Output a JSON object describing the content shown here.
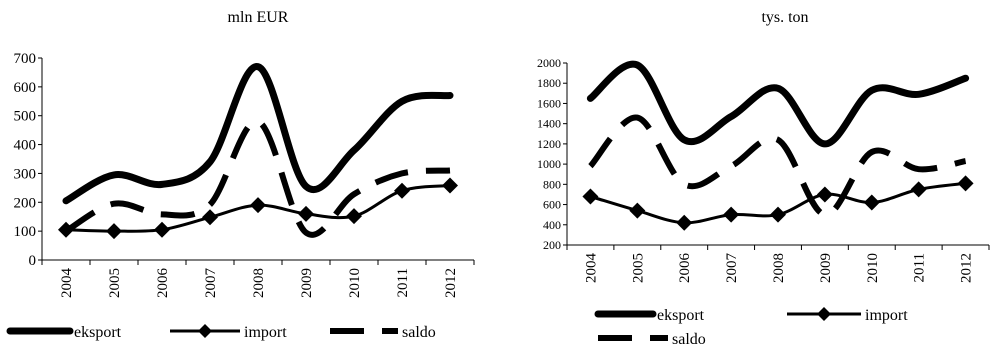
{
  "chart_data": [
    {
      "type": "line",
      "title": "mln EUR",
      "categories": [
        "2004",
        "2005",
        "2006",
        "2007",
        "2008",
        "2009",
        "2010",
        "2011",
        "2012"
      ],
      "ylim": [
        0,
        700
      ],
      "yticks": [
        0,
        100,
        200,
        300,
        400,
        500,
        600,
        700
      ],
      "series": [
        {
          "name": "eksport",
          "values": [
            205,
            295,
            262,
            340,
            670,
            255,
            380,
            550,
            570
          ],
          "style": "thick-solid"
        },
        {
          "name": "import",
          "values": [
            105,
            100,
            105,
            148,
            190,
            160,
            152,
            240,
            258
          ],
          "style": "solid-diamond"
        },
        {
          "name": "saldo",
          "values": [
            100,
            195,
            158,
            192,
            480,
            95,
            228,
            300,
            310
          ],
          "style": "dashed"
        }
      ],
      "legend_position": "bottom"
    },
    {
      "type": "line",
      "title": "tys. ton",
      "categories": [
        "2004",
        "2005",
        "2006",
        "2007",
        "2008",
        "2009",
        "2010",
        "2011",
        "2012"
      ],
      "ylim": [
        200,
        2000
      ],
      "yticks": [
        200,
        400,
        600,
        800,
        1000,
        1200,
        1400,
        1600,
        1800,
        2000
      ],
      "series": [
        {
          "name": "eksport",
          "values": [
            1650,
            1980,
            1240,
            1470,
            1750,
            1200,
            1730,
            1690,
            1850
          ],
          "style": "thick-solid"
        },
        {
          "name": "import",
          "values": [
            680,
            540,
            420,
            500,
            500,
            700,
            620,
            750,
            810
          ],
          "style": "solid-diamond"
        },
        {
          "name": "saldo",
          "values": [
            980,
            1460,
            800,
            980,
            1240,
            500,
            1120,
            950,
            1030
          ],
          "style": "dashed"
        }
      ],
      "legend_position": "bottom"
    }
  ],
  "colors": {
    "line": "#000000"
  }
}
